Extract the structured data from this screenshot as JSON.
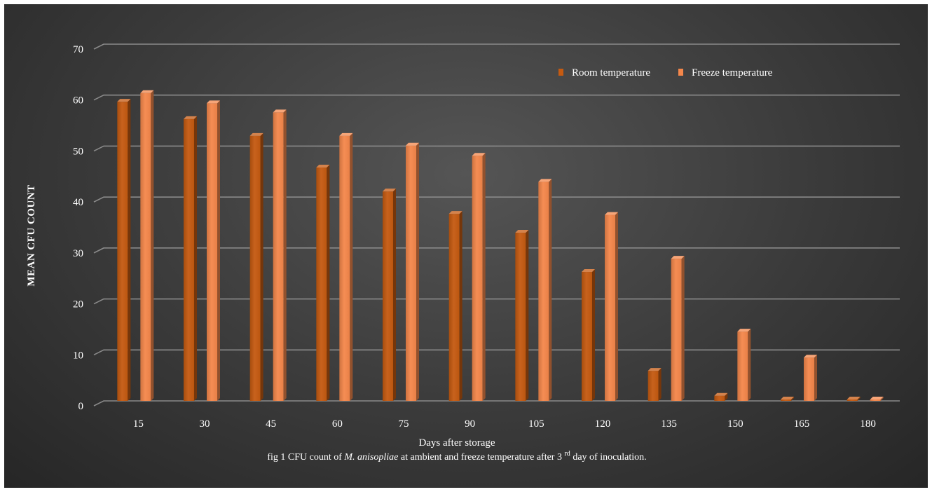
{
  "chart_data": {
    "type": "bar",
    "title": "",
    "xlabel": "Days after storage",
    "ylabel": "MEAN CFU COUNT",
    "categories": [
      "15",
      "30",
      "45",
      "60",
      "75",
      "90",
      "105",
      "120",
      "135",
      "150",
      "165",
      "180"
    ],
    "series": [
      {
        "name": "Room temperature",
        "color": "#c55a11",
        "values": [
          58.7,
          55.3,
          52.0,
          45.8,
          41.1,
          36.7,
          33.0,
          25.3,
          5.9,
          1.0,
          0,
          0
        ]
      },
      {
        "name": "Freeze temperature",
        "color": "#f4874b",
        "values": [
          60.4,
          58.4,
          56.6,
          52.0,
          50.1,
          48.1,
          43.0,
          36.5,
          27.9,
          13.6,
          8.5,
          0
        ]
      }
    ],
    "yticks": [
      "0",
      "10",
      "20",
      "30",
      "40",
      "50",
      "60",
      "70"
    ],
    "ylim": [
      0,
      70
    ],
    "grid": true,
    "legend_position": "top-right"
  },
  "caption": {
    "prefix": "fig 1 CFU count of ",
    "species": "M. anisopliae",
    "middle": " at ambient and freeze temperature after 3",
    "superscript": "rd",
    "suffix": " day of inoculation."
  }
}
